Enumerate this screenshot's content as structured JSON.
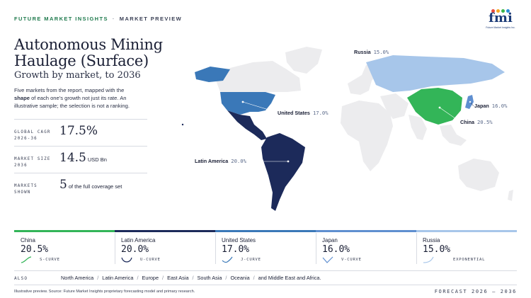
{
  "header": {
    "brand": "FUTURE MARKET INSIGHTS",
    "separator": "·",
    "section": "MARKET PREVIEW"
  },
  "logo": {
    "text": "fmi",
    "tagline": "Future Market Insights Inc.",
    "dot_colors": [
      "#e84a3c",
      "#f5a623",
      "#3ab54a",
      "#2a8fd6"
    ]
  },
  "title": "Autonomous Mining Haulage (Surface)",
  "subtitle": "Growth by market, to 2036",
  "description": {
    "part1": "Five markets from the report, mapped with the ",
    "bold": "shape",
    "part2": " of each one's growth not just its rate. An illustrative sample; the selection is not a ranking."
  },
  "stats": [
    {
      "label": "GLOBAL CAGR\n2026-36",
      "value": "17.5%",
      "unit": ""
    },
    {
      "label": "MARKET SIZE\n2036",
      "value": "14.5",
      "unit": "USD Bn"
    },
    {
      "label": "MARKETS\nSHOWN",
      "value": "5",
      "unit": "of the full coverage set"
    }
  ],
  "map_labels": [
    {
      "name": "Russia",
      "rate": "15.0%"
    },
    {
      "name": "United States",
      "rate": "17.0%"
    },
    {
      "name": "Japan",
      "rate": "16.0%"
    },
    {
      "name": "China",
      "rate": "20.5%"
    },
    {
      "name": "Latin America",
      "rate": "20.0%"
    }
  ],
  "colors": {
    "china": "#33b558",
    "latin_america": "#1c2a5a",
    "united_states": "#3a78b8",
    "japan": "#5f8fd0",
    "russia": "#a7c6ea",
    "land": "#ececee"
  },
  "cards": [
    {
      "name": "China",
      "rate": "20.5%",
      "curve": "S-CURVE",
      "shape_icon": "s-curve-icon"
    },
    {
      "name": "Latin America",
      "rate": "20.0%",
      "curve": "U-CURVE",
      "shape_icon": "u-curve-icon"
    },
    {
      "name": "United States",
      "rate": "17.0%",
      "curve": "J-CURVE",
      "shape_icon": "j-curve-icon"
    },
    {
      "name": "Japan",
      "rate": "16.0%",
      "curve": "V-CURVE",
      "shape_icon": "v-curve-icon"
    },
    {
      "name": "Russia",
      "rate": "15.0%",
      "curve": "EXPONENTIAL",
      "shape_icon": "exponential-curve-icon"
    }
  ],
  "also": {
    "label": "ALSO",
    "regions": [
      "North America",
      "Latin America",
      "Europe",
      "East Asia",
      "South Asia",
      "Oceania",
      "and Middle East and Africa."
    ]
  },
  "footer": {
    "source": "Illustrative preview. Source: Future Market Insights proprietary forecasting model and primary research.",
    "forecast": "FORECAST 2026 – 2036"
  }
}
